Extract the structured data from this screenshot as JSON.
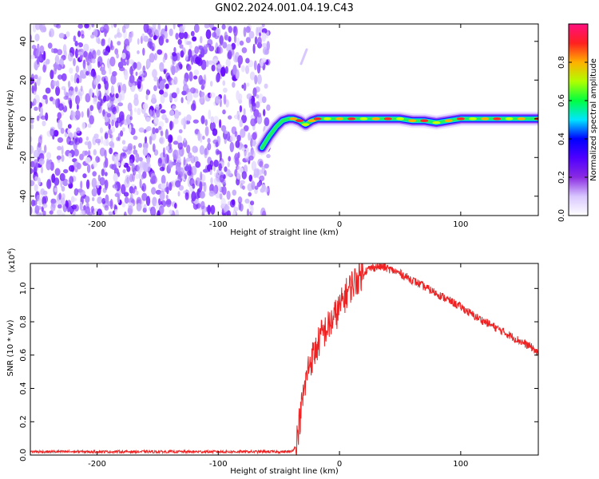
{
  "title": "GN02.2024.001.04.19.C43",
  "chart_data": [
    {
      "type": "heatmap",
      "xlabel": "Height of straight line (km)",
      "ylabel": "Frequency (Hz)",
      "xlim": [
        -255,
        164
      ],
      "ylim": [
        -50,
        49
      ],
      "xticks": [
        -200,
        -100,
        0,
        100
      ],
      "yticks": [
        -40,
        -20,
        0,
        20,
        40
      ],
      "noise_region_x": [
        -255,
        -58
      ],
      "signal_track": {
        "x": [
          -64,
          -58,
          -52,
          -47,
          -42,
          -38,
          -33,
          -28,
          -23,
          -18,
          -10,
          0,
          10,
          20,
          30,
          40,
          50,
          60,
          70,
          80,
          90,
          100,
          110,
          120,
          130,
          140,
          150,
          164
        ],
        "y": [
          -15,
          -9,
          -4,
          -1,
          0,
          0,
          -1,
          -3,
          -1,
          0,
          0,
          0,
          0,
          0,
          0,
          0,
          0,
          -1,
          -1,
          -2,
          -1,
          0,
          0,
          0,
          0,
          0,
          0,
          0
        ]
      },
      "colorbar": {
        "label": "Normalized spectral amplitude",
        "range": [
          0.0,
          1.0
        ],
        "ticks": [
          "0.0",
          "0.2",
          "0.4",
          "0.6",
          "0.8"
        ],
        "colors": [
          "#ffffff",
          "#d9c7ff",
          "#8a2be2",
          "#5000ff",
          "#0000ff",
          "#00e5ff",
          "#00ff40",
          "#b0ff00",
          "#ffb000",
          "#ff2020",
          "#ff1080"
        ]
      }
    },
    {
      "type": "line",
      "xlabel": "Height of straight line (km)",
      "ylabel": "SNR (10 * v/v)",
      "yscale_label": "(x10",
      "yscale_exp": "4",
      "yscale_close": ")",
      "xlim": [
        -255,
        164
      ],
      "ylim": [
        0.0,
        1.15
      ],
      "xticks": [
        -200,
        -100,
        0,
        100
      ],
      "yticks": [
        "0.0",
        "0.2",
        "0.4",
        "0.6",
        "0.8",
        "1.0"
      ],
      "color": "#ee2222",
      "series": [
        {
          "x": [
            -255,
            -200,
            -100,
            -50,
            -40,
            -36,
            -34,
            -30,
            -25,
            -20,
            -15,
            -10,
            -5,
            0,
            5,
            10,
            15,
            20,
            25,
            30,
            35,
            40,
            50,
            60,
            70,
            80,
            90,
            100,
            110,
            120,
            130,
            140,
            150,
            160,
            164
          ],
          "values": [
            0.02,
            0.02,
            0.02,
            0.02,
            0.02,
            0.05,
            0.15,
            0.35,
            0.55,
            0.62,
            0.72,
            0.76,
            0.82,
            0.88,
            0.96,
            1.02,
            1.06,
            1.1,
            1.12,
            1.13,
            1.13,
            1.12,
            1.09,
            1.05,
            1.01,
            0.97,
            0.93,
            0.89,
            0.84,
            0.8,
            0.76,
            0.72,
            0.68,
            0.64,
            0.6
          ]
        }
      ]
    }
  ]
}
